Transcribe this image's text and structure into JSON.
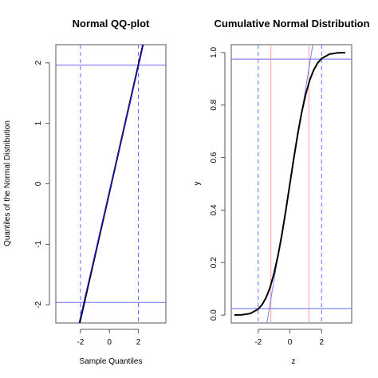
{
  "chart_data": [
    {
      "type": "line",
      "title": "Normal QQ-plot",
      "xlabel": "Sample Quantiles",
      "ylabel": "Quantiles of the Normal Distribution",
      "xlim": [
        -3.7,
        3.9
      ],
      "ylim": [
        -2.3,
        2.3
      ],
      "x_ticks": [
        -2,
        0,
        2
      ],
      "x_tick_labels": [
        "-2",
        "0",
        "2"
      ],
      "y_ticks": [
        -2,
        -1,
        0,
        1,
        2
      ],
      "y_tick_labels": [
        "-2",
        "-1",
        "0",
        "1",
        "2"
      ],
      "grid": false,
      "series": [
        {
          "color": "#000000",
          "style": "solid",
          "x": [
            -2.05,
            2.32
          ],
          "y": [
            -2.3,
            2.3
          ]
        },
        {
          "color": "#1a1aff",
          "style": "solid",
          "x": [
            -2.1,
            2.35
          ],
          "y": [
            -2.3,
            2.3
          ]
        }
      ],
      "reference_lines": {
        "horizontal": {
          "color": "#6a6aff",
          "style": "solid",
          "values": [
            -1.96,
            1.96
          ]
        },
        "vertical": {
          "color": "#6a6aff",
          "style": "dashed",
          "values": [
            -2,
            2
          ]
        }
      }
    },
    {
      "type": "line",
      "title": "Cumulative Normal Distribution",
      "xlabel": "z",
      "ylabel": "y",
      "xlim": [
        -3.7,
        3.9
      ],
      "ylim": [
        -0.03,
        1.03
      ],
      "x_ticks": [
        -2,
        0,
        2
      ],
      "x_tick_labels": [
        "-2",
        "0",
        "2"
      ],
      "y_ticks": [
        0,
        0.2,
        0.4,
        0.6,
        0.8,
        1
      ],
      "y_tick_labels": [
        "0.0",
        "0.2",
        "0.4",
        "0.6",
        "0.8",
        "1.0"
      ],
      "grid": false,
      "series": [
        {
          "color": "#000000",
          "style": "solid",
          "x": [
            -3.5,
            -3.0,
            -2.5,
            -2.0,
            -1.75,
            -1.5,
            -1.25,
            -1.0,
            -0.75,
            -0.5,
            -0.25,
            0,
            0.25,
            0.5,
            0.75,
            1.0,
            1.25,
            1.5,
            1.75,
            2.0,
            2.5,
            3.0,
            3.5
          ],
          "y": [
            0.0002,
            0.0013,
            0.0062,
            0.0228,
            0.0401,
            0.0668,
            0.1056,
            0.1587,
            0.2266,
            0.3085,
            0.4013,
            0.5,
            0.5987,
            0.6915,
            0.7734,
            0.8413,
            0.8944,
            0.9332,
            0.9599,
            0.9772,
            0.9938,
            0.9987,
            0.9998
          ]
        },
        {
          "color": "#7a7aff",
          "style": "solid",
          "x": [
            -1.45,
            1.45
          ],
          "y": [
            -0.03,
            1.03
          ]
        }
      ],
      "reference_lines": {
        "horizontal": {
          "color": "#6a6aff",
          "style": "solid",
          "values": [
            0.025,
            0.975
          ]
        },
        "vertical_dashed": {
          "color": "#6a6aff",
          "style": "dashed",
          "values": [
            -2,
            2
          ]
        },
        "vertical_solid": {
          "color": "#ff9a9a",
          "style": "solid",
          "values": [
            -1.2,
            1.2
          ]
        }
      }
    }
  ]
}
